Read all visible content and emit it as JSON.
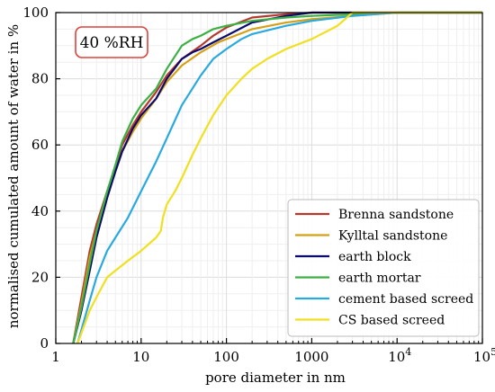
{
  "chart_data": {
    "type": "line",
    "annotation": "40 %RH",
    "xlabel": "pore diameter in nm",
    "ylabel": "normalised cumulated amount of water in %",
    "x_scale": "log",
    "xlim": [
      1,
      100000
    ],
    "ylim": [
      0,
      100
    ],
    "x_ticks": [
      {
        "value": 1,
        "label": "1"
      },
      {
        "value": 10,
        "label": "10"
      },
      {
        "value": 100,
        "label": "100"
      },
      {
        "value": 1000,
        "label": "1000"
      },
      {
        "value": 10000,
        "label": "10",
        "exp": "4"
      },
      {
        "value": 100000,
        "label": "10",
        "exp": "5"
      }
    ],
    "y_ticks": [
      0,
      20,
      40,
      60,
      80,
      100
    ],
    "grid": true,
    "legend_position": "bottom-right",
    "series": [
      {
        "name": "Brenna sandstone",
        "color": "#b5392f",
        "points": [
          [
            1.6,
            0
          ],
          [
            2,
            14
          ],
          [
            2.5,
            28
          ],
          [
            3,
            36
          ],
          [
            4,
            46
          ],
          [
            5,
            53
          ],
          [
            6,
            60
          ],
          [
            8,
            66
          ],
          [
            10,
            70
          ],
          [
            15,
            76
          ],
          [
            20,
            81
          ],
          [
            30,
            86
          ],
          [
            50,
            90
          ],
          [
            70,
            93
          ],
          [
            100,
            95.5
          ],
          [
            200,
            98.5
          ],
          [
            500,
            99.5
          ],
          [
            1000,
            100
          ],
          [
            100000,
            100
          ]
        ]
      },
      {
        "name": "Kylltal sandstone",
        "color": "#d4a017",
        "points": [
          [
            1.6,
            0
          ],
          [
            2,
            12
          ],
          [
            2.5,
            26
          ],
          [
            3,
            34
          ],
          [
            4,
            45
          ],
          [
            5,
            52
          ],
          [
            6,
            58
          ],
          [
            8,
            64
          ],
          [
            10,
            68
          ],
          [
            15,
            74
          ],
          [
            20,
            79
          ],
          [
            30,
            84
          ],
          [
            50,
            88
          ],
          [
            80,
            91
          ],
          [
            100,
            92
          ],
          [
            200,
            95
          ],
          [
            500,
            97
          ],
          [
            1000,
            98
          ],
          [
            3000,
            99
          ],
          [
            10000,
            100
          ],
          [
            100000,
            100
          ]
        ]
      },
      {
        "name": "earth block",
        "color": "#0b0b6e",
        "points": [
          [
            1.6,
            0
          ],
          [
            2,
            10
          ],
          [
            2.5,
            22
          ],
          [
            3,
            32
          ],
          [
            4,
            44
          ],
          [
            5,
            52
          ],
          [
            6,
            58
          ],
          [
            8,
            65
          ],
          [
            10,
            69
          ],
          [
            15,
            74
          ],
          [
            20,
            80
          ],
          [
            30,
            86
          ],
          [
            40,
            88
          ],
          [
            50,
            89
          ],
          [
            70,
            91
          ],
          [
            100,
            93
          ],
          [
            200,
            97
          ],
          [
            500,
            99
          ],
          [
            1000,
            100
          ],
          [
            100000,
            100
          ]
        ]
      },
      {
        "name": "earth mortar",
        "color": "#3cb043",
        "points": [
          [
            1.6,
            0
          ],
          [
            2,
            11
          ],
          [
            2.5,
            24
          ],
          [
            3,
            34
          ],
          [
            4,
            46
          ],
          [
            5,
            54
          ],
          [
            6,
            61
          ],
          [
            8,
            68
          ],
          [
            10,
            72
          ],
          [
            15,
            77
          ],
          [
            20,
            83
          ],
          [
            30,
            90
          ],
          [
            40,
            92
          ],
          [
            50,
            93
          ],
          [
            70,
            95
          ],
          [
            100,
            96
          ],
          [
            200,
            97.5
          ],
          [
            500,
            98.5
          ],
          [
            1000,
            99
          ],
          [
            3000,
            99.5
          ],
          [
            10000,
            100
          ],
          [
            100000,
            100
          ]
        ]
      },
      {
        "name": "cement based screed",
        "color": "#29a9e0",
        "points": [
          [
            1.8,
            0
          ],
          [
            2.5,
            13
          ],
          [
            3,
            20
          ],
          [
            4,
            28
          ],
          [
            5,
            32
          ],
          [
            7,
            38
          ],
          [
            10,
            46
          ],
          [
            15,
            55
          ],
          [
            20,
            62
          ],
          [
            30,
            72
          ],
          [
            50,
            81
          ],
          [
            70,
            86
          ],
          [
            100,
            89
          ],
          [
            150,
            92
          ],
          [
            200,
            93.5
          ],
          [
            500,
            96
          ],
          [
            1000,
            97.5
          ],
          [
            3000,
            99
          ],
          [
            10000,
            100
          ],
          [
            100000,
            100
          ]
        ]
      },
      {
        "name": "CS based screed",
        "color": "#f0e020",
        "points": [
          [
            1.8,
            0
          ],
          [
            2.5,
            10
          ],
          [
            3,
            14
          ],
          [
            4,
            20
          ],
          [
            5,
            22
          ],
          [
            7,
            25
          ],
          [
            10,
            28
          ],
          [
            15,
            32
          ],
          [
            17,
            34
          ],
          [
            18,
            38
          ],
          [
            20,
            42
          ],
          [
            25,
            46
          ],
          [
            30,
            50
          ],
          [
            40,
            57
          ],
          [
            50,
            62
          ],
          [
            70,
            69
          ],
          [
            100,
            75
          ],
          [
            150,
            80
          ],
          [
            200,
            83
          ],
          [
            300,
            86
          ],
          [
            500,
            89
          ],
          [
            1000,
            92
          ],
          [
            2000,
            96
          ],
          [
            3000,
            100
          ],
          [
            100000,
            100
          ]
        ]
      }
    ]
  }
}
